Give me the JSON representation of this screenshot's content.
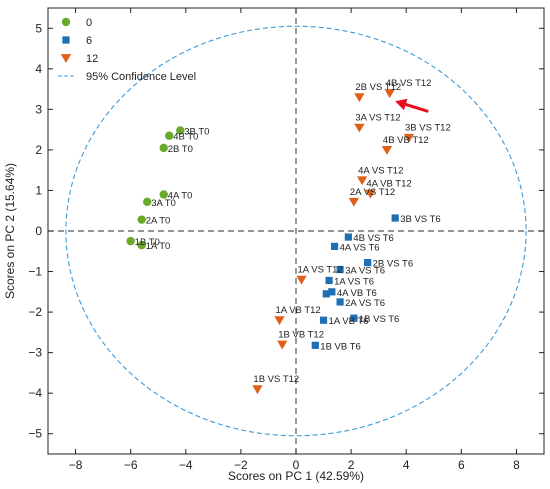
{
  "chart_data": {
    "type": "scatter",
    "xlabel": "Scores on PC 1 (42.59%)",
    "ylabel": "Scores on PC 2 (15.64%)",
    "xlim": [
      -9,
      9
    ],
    "ylim": [
      -5.5,
      5.5
    ],
    "xticks": [
      -8,
      -6,
      -4,
      -2,
      0,
      2,
      4,
      6,
      8
    ],
    "yticks": [
      -5,
      -4,
      -3,
      -2,
      -1,
      0,
      1,
      2,
      3,
      4,
      5
    ],
    "reference_lines": {
      "x": 0,
      "y": 0,
      "style": "dashed",
      "color": "#555555"
    },
    "confidence_ellipse": {
      "label": "95% Confidence Level",
      "center": [
        0,
        0
      ],
      "rx": 8.35,
      "ry": 5.05,
      "color": "#3d9ad8"
    },
    "legend": {
      "position": "top-left"
    },
    "arrow": {
      "from": [
        4.8,
        2.95
      ],
      "to": [
        3.6,
        3.2
      ],
      "color": "#e8101a"
    },
    "series": [
      {
        "name": "0",
        "marker": "circle",
        "color": "#6aaa2a",
        "points": [
          {
            "x": -4.2,
            "y": 2.48,
            "label": "3B T0"
          },
          {
            "x": -4.6,
            "y": 2.35,
            "label": "4B T0"
          },
          {
            "x": -4.8,
            "y": 2.05,
            "label": "2B T0"
          },
          {
            "x": -4.8,
            "y": 0.9,
            "label": "4A T0"
          },
          {
            "x": -5.4,
            "y": 0.72,
            "label": "3A T0"
          },
          {
            "x": -5.6,
            "y": 0.28,
            "label": "2A T0"
          },
          {
            "x": -6.0,
            "y": -0.25,
            "label": "1B T0"
          },
          {
            "x": -5.6,
            "y": -0.35,
            "label": "1A T0"
          }
        ]
      },
      {
        "name": "6",
        "marker": "square",
        "color": "#1f6fb4",
        "points": [
          {
            "x": 3.6,
            "y": 0.32,
            "label": "3B VS T6"
          },
          {
            "x": 1.9,
            "y": -0.15,
            "label": "4B VS T6"
          },
          {
            "x": 1.4,
            "y": -0.38,
            "label": "4A VS T6"
          },
          {
            "x": 2.6,
            "y": -0.78,
            "label": "2B VS T6"
          },
          {
            "x": 1.6,
            "y": -0.95,
            "label": "3A VS T6"
          },
          {
            "x": 1.2,
            "y": -1.22,
            "label": "1A VS T6"
          },
          {
            "x": 1.3,
            "y": -1.5,
            "label": "4A VB T6"
          },
          {
            "x": 1.1,
            "y": -1.55,
            "label": ""
          },
          {
            "x": 1.6,
            "y": -1.75,
            "label": "2A VS T6"
          },
          {
            "x": 2.1,
            "y": -2.15,
            "label": "1B VS T6"
          },
          {
            "x": 1.0,
            "y": -2.2,
            "label": "1A VB T6"
          },
          {
            "x": 0.7,
            "y": -2.82,
            "label": "1B VB T6"
          }
        ]
      },
      {
        "name": "12",
        "marker": "triangle-down",
        "color": "#e0621a",
        "points": [
          {
            "x": 3.4,
            "y": 3.4,
            "label": "4B VS T12"
          },
          {
            "x": 2.3,
            "y": 3.3,
            "label": "2B VS T12"
          },
          {
            "x": 2.3,
            "y": 2.55,
            "label": "3A VS T12"
          },
          {
            "x": 4.1,
            "y": 2.3,
            "label": "3B VS T12"
          },
          {
            "x": 3.3,
            "y": 2.0,
            "label": "4B VB T12"
          },
          {
            "x": 2.4,
            "y": 1.25,
            "label": "4A VS T12"
          },
          {
            "x": 2.7,
            "y": 0.92,
            "label": "4A VB T12"
          },
          {
            "x": 2.1,
            "y": 0.72,
            "label": "2A VS T12"
          },
          {
            "x": 0.2,
            "y": -1.2,
            "label": "1A VS T12"
          },
          {
            "x": -0.6,
            "y": -2.2,
            "label": "1A VB T12"
          },
          {
            "x": -0.5,
            "y": -2.8,
            "label": "1B VB T12"
          },
          {
            "x": -1.4,
            "y": -3.9,
            "label": "1B VS T12"
          }
        ]
      }
    ]
  }
}
